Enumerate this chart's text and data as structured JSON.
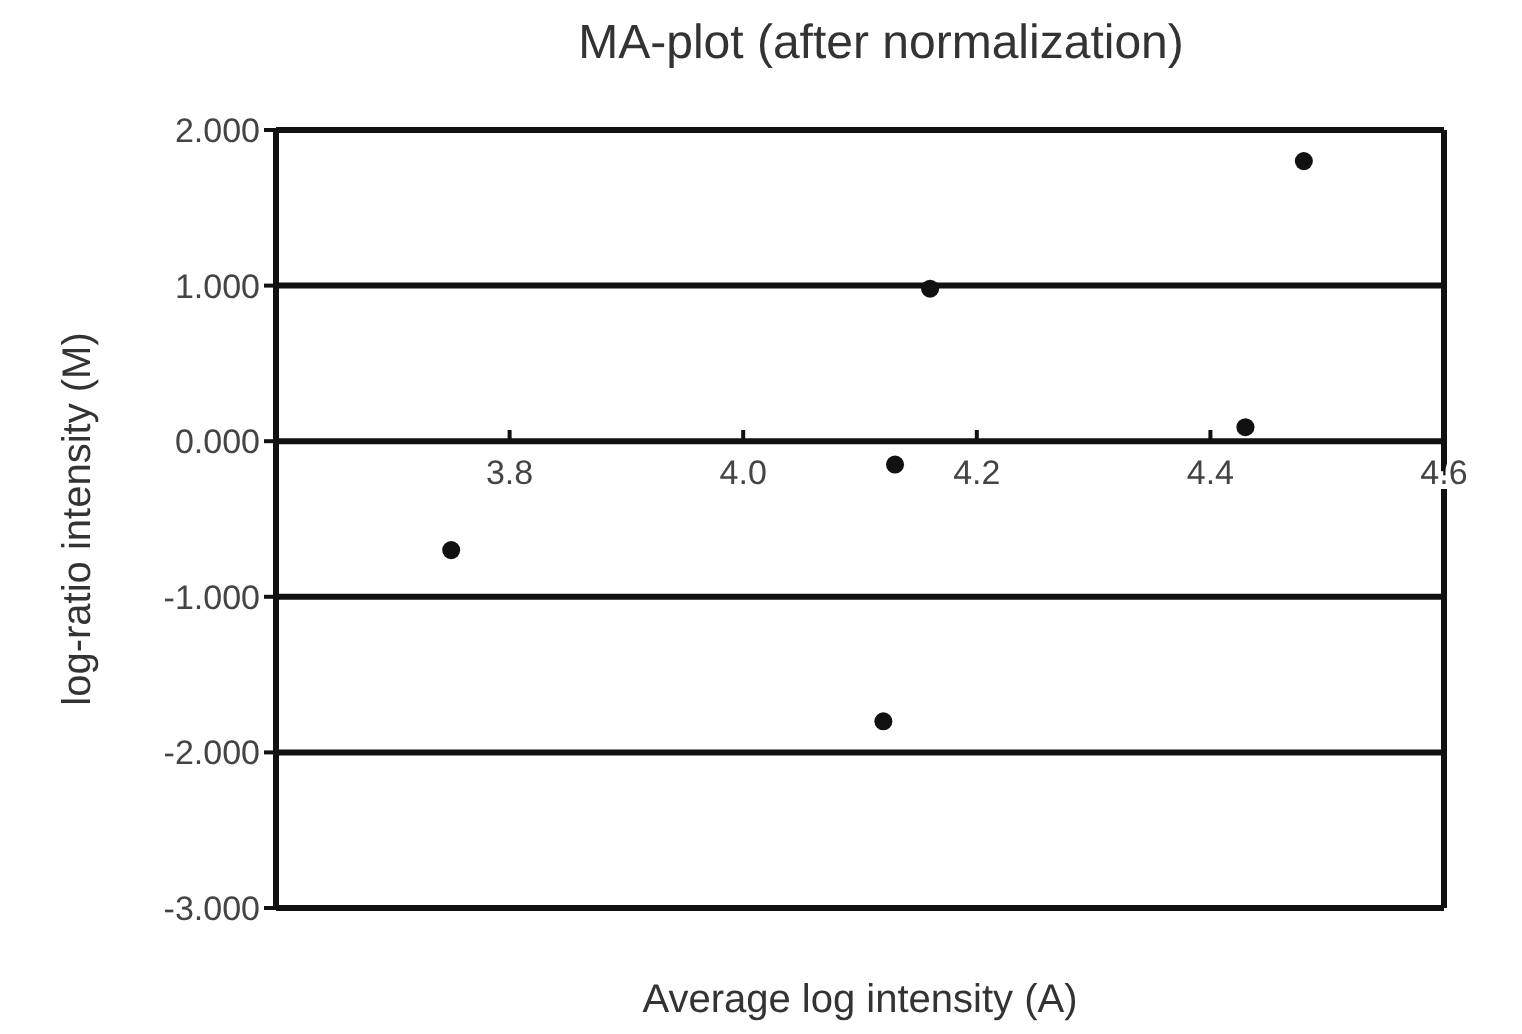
{
  "chart_data": {
    "type": "scatter",
    "title": "MA-plot (after normalization)",
    "xlabel": "Average log intensity (A)",
    "ylabel": "log-ratio intensity (M)",
    "x": [
      3.75,
      4.12,
      4.13,
      4.16,
      4.43,
      4.48
    ],
    "series": [
      {
        "color": "#111111",
        "values": [
          -0.7,
          -1.8,
          -0.15,
          0.98,
          0.09,
          1.8
        ]
      }
    ],
    "xlim": [
      3.6,
      4.6
    ],
    "xticks": [
      3.8,
      {
        "value": 4,
        "label": "4.0"
      },
      4.2,
      4.4,
      4.6
    ],
    "ylim": [
      -3,
      2
    ],
    "yticks": [
      {
        "value": -3,
        "label": "-3.000"
      },
      {
        "value": -2,
        "label": "-2.000"
      },
      {
        "value": -1,
        "label": "-1.000"
      },
      {
        "value": 0,
        "label": "0.000"
      },
      {
        "value": 1,
        "label": "1.000"
      },
      {
        "value": 2,
        "label": "2.000"
      }
    ],
    "grid": "y",
    "marker": "circle",
    "legend": false
  }
}
